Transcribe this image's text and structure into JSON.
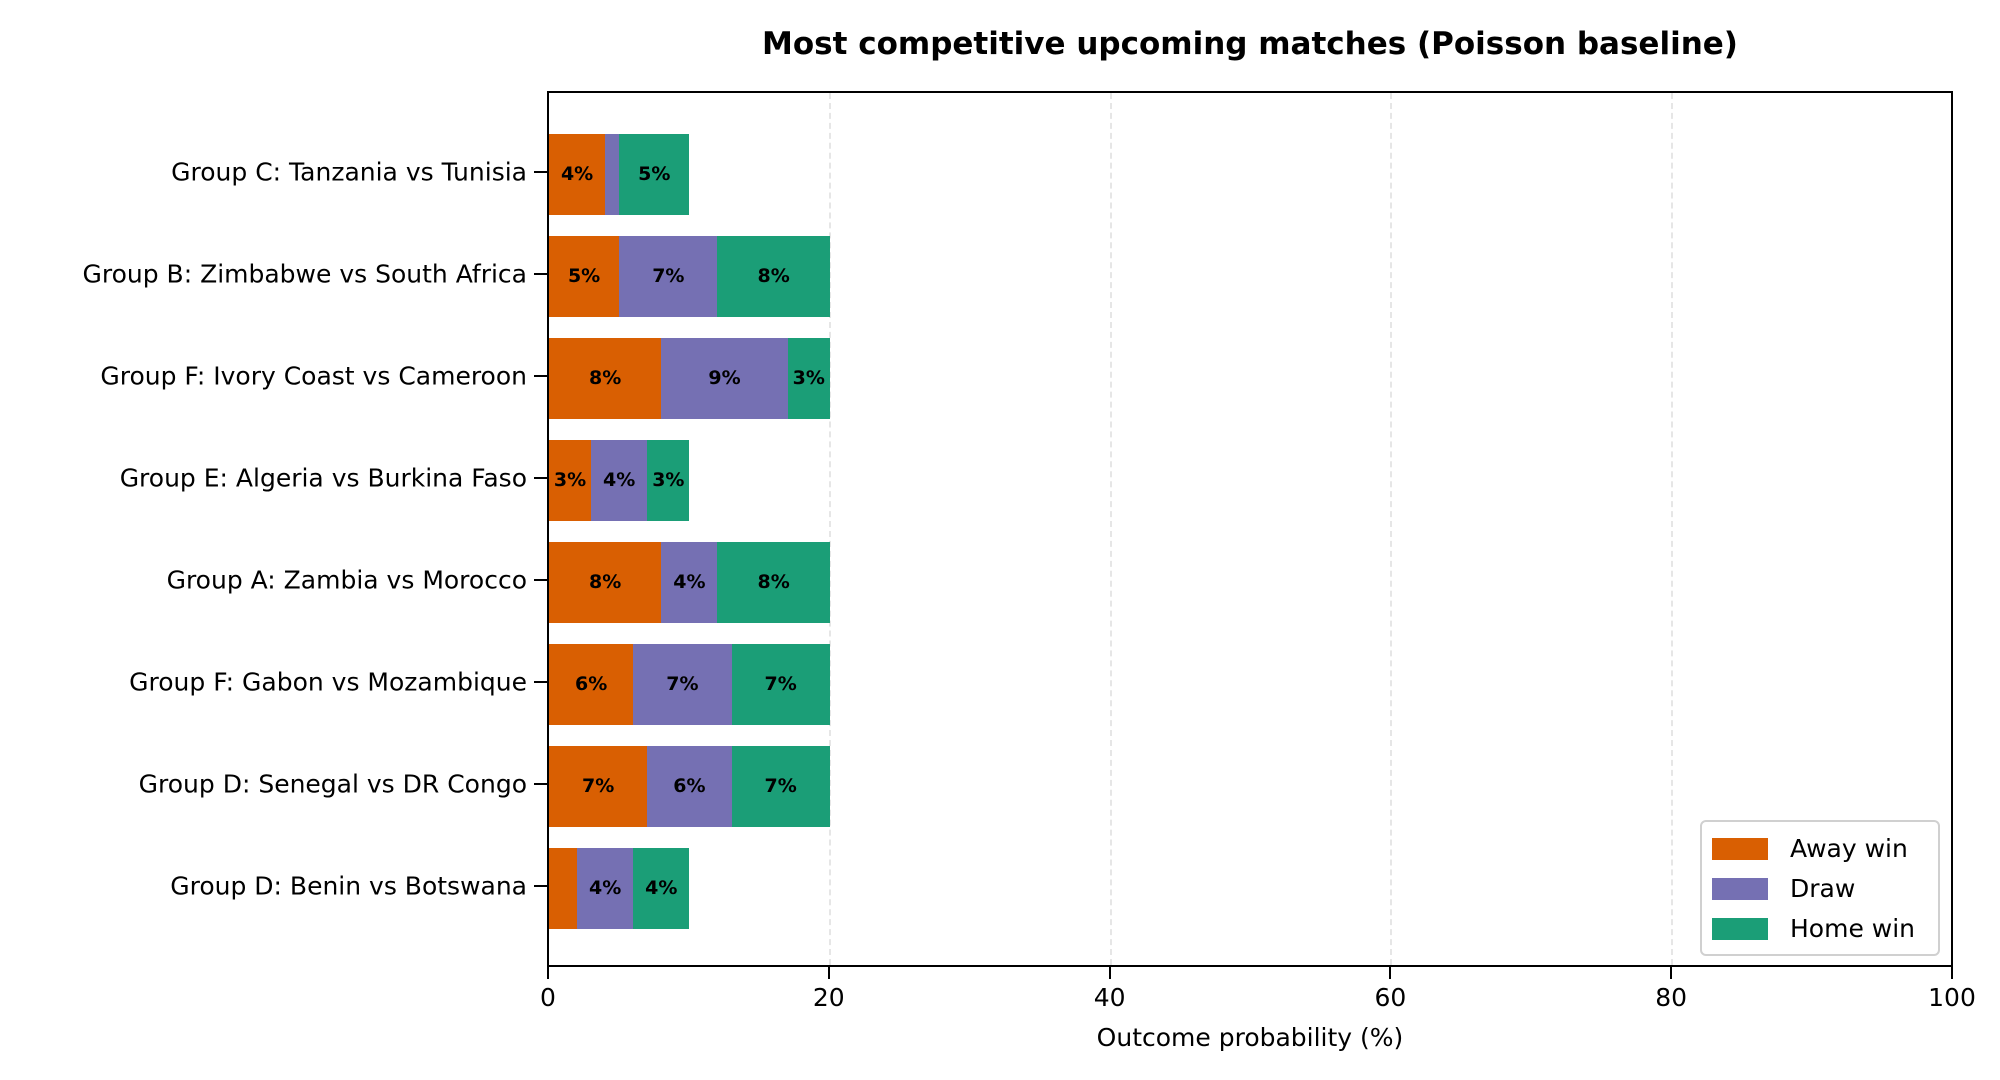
{
  "chart_data": {
    "type": "bar",
    "orientation": "horizontal",
    "stacked": true,
    "title": "Most competitive upcoming matches (Poisson baseline)",
    "xlabel": "Outcome probability (%)",
    "ylabel": "",
    "xlim": [
      0,
      100
    ],
    "xticks": [
      "0",
      "20",
      "40",
      "60",
      "80",
      "100"
    ],
    "grid": "x dashed",
    "legend_position": "lower right",
    "categories": [
      "Group C: Tanzania vs Tunisia",
      "Group B: Zimbabwe vs South Africa",
      "Group F: Ivory Coast vs Cameroon",
      "Group E: Algeria vs Burkina Faso",
      "Group A: Zambia vs Morocco",
      "Group F: Gabon vs Mozambique",
      "Group D: Senegal vs DR Congo",
      "Group D: Benin vs Botswana"
    ],
    "series": [
      {
        "name": "Away win",
        "color": "#d95f02",
        "values": [
          4,
          5,
          8,
          3,
          8,
          6,
          7,
          2
        ],
        "labels": [
          "4%",
          "5%",
          "8%",
          "3%",
          "8%",
          "6%",
          "7%",
          ""
        ]
      },
      {
        "name": "Draw",
        "color": "#7570b3",
        "values": [
          1,
          7,
          9,
          4,
          4,
          7,
          6,
          4
        ],
        "labels": [
          "",
          "7%",
          "9%",
          "4%",
          "4%",
          "7%",
          "6%",
          "4%"
        ]
      },
      {
        "name": "Home win",
        "color": "#1b9e77",
        "values": [
          5,
          8,
          3,
          3,
          8,
          7,
          7,
          4
        ],
        "labels": [
          "5%",
          "8%",
          "3%",
          "3%",
          "8%",
          "7%",
          "7%",
          "4%"
        ]
      }
    ]
  }
}
